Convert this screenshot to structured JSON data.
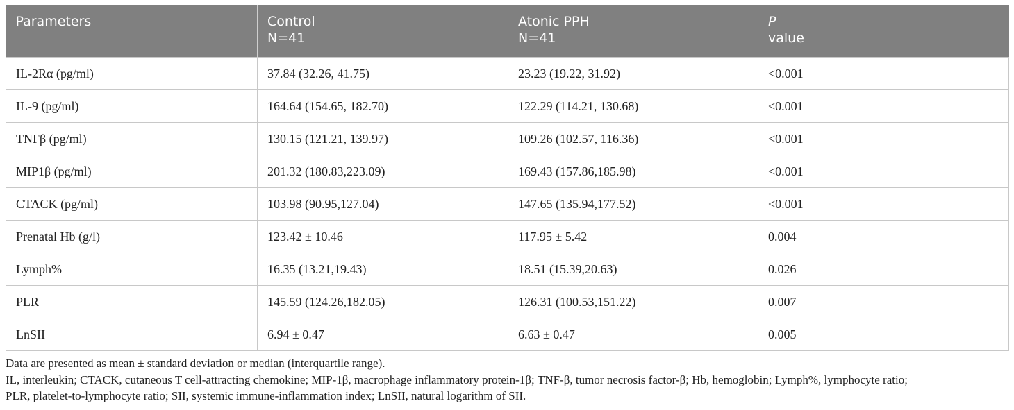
{
  "table": {
    "headers": [
      {
        "line1": "Parameters",
        "line2": ""
      },
      {
        "line1": "Control",
        "line2": "N=41"
      },
      {
        "line1": "Atonic PPH",
        "line2": "N=41"
      },
      {
        "line1": "P",
        "line2": "value"
      }
    ],
    "rows": [
      [
        "IL-2Rα (pg/ml)",
        "37.84 (32.26, 41.75)",
        "23.23 (19.22, 31.92)",
        "<0.001"
      ],
      [
        "IL-9 (pg/ml)",
        "164.64 (154.65, 182.70)",
        "122.29 (114.21, 130.68)",
        "<0.001"
      ],
      [
        "TNFβ (pg/ml)",
        "130.15 (121.21, 139.97)",
        "109.26 (102.57, 116.36)",
        "<0.001"
      ],
      [
        "MIP1β (pg/ml)",
        "201.32 (180.83,223.09)",
        "169.43 (157.86,185.98)",
        "<0.001"
      ],
      [
        "CTACK (pg/ml)",
        "103.98 (90.95,127.04)",
        "147.65 (135.94,177.52)",
        "<0.001"
      ],
      [
        "Prenatal Hb (g/l)",
        "123.42 ± 10.46",
        "117.95 ± 5.42",
        "0.004"
      ],
      [
        "Lymph%",
        "16.35 (13.21,19.43)",
        "18.51 (15.39,20.63)",
        "0.026"
      ],
      [
        "PLR",
        "145.59 (124.26,182.05)",
        "126.31 (100.53,151.22)",
        "0.007"
      ],
      [
        "LnSII",
        "6.94 ± 0.47",
        "6.63 ± 0.47",
        "0.005"
      ]
    ]
  },
  "footnotes": {
    "line1": "Data are presented as mean ± standard deviation or median (interquartile range).",
    "line2": "IL, interleukin; CTACK, cutaneous T cell-attracting chemokine; MIP-1β, macrophage inflammatory protein-1β; TNF-β, tumor necrosis factor-β; Hb, hemoglobin; Lymph%, lymphocyte ratio;",
    "line3": "PLR, platelet-to-lymphocyte ratio; SII, systemic immune-inflammation index; LnSII, natural logarithm of SII."
  }
}
